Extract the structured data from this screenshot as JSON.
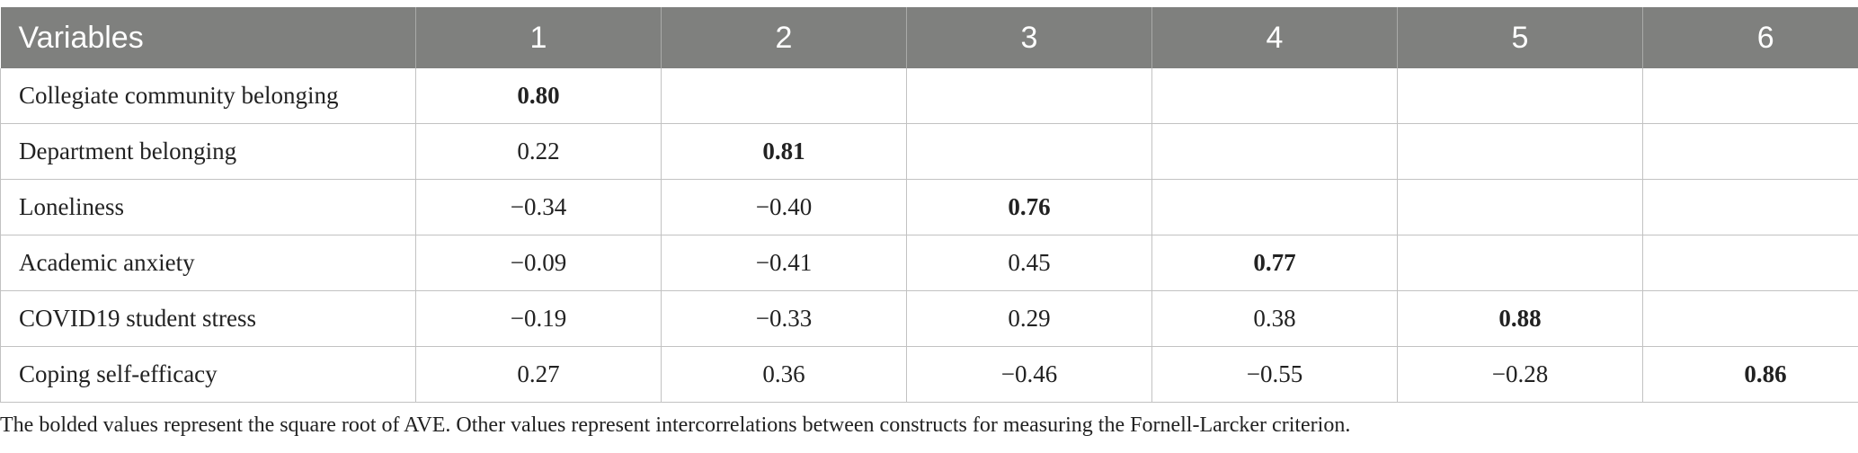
{
  "table": {
    "headers": [
      "Variables",
      "1",
      "2",
      "3",
      "4",
      "5",
      "6"
    ],
    "rows": [
      {
        "label": "Collegiate community belonging",
        "cells": [
          "0.80",
          "",
          "",
          "",
          "",
          ""
        ],
        "bold_index": 0
      },
      {
        "label": "Department belonging",
        "cells": [
          "0.22",
          "0.81",
          "",
          "",
          "",
          ""
        ],
        "bold_index": 1
      },
      {
        "label": "Loneliness",
        "cells": [
          "−0.34",
          "−0.40",
          "0.76",
          "",
          "",
          ""
        ],
        "bold_index": 2
      },
      {
        "label": "Academic anxiety",
        "cells": [
          "−0.09",
          "−0.41",
          "0.45",
          "0.77",
          "",
          ""
        ],
        "bold_index": 3
      },
      {
        "label": "COVID19 student stress",
        "cells": [
          "−0.19",
          "−0.33",
          "0.29",
          "0.38",
          "0.88",
          ""
        ],
        "bold_index": 4
      },
      {
        "label": "Coping self-efficacy",
        "cells": [
          "0.27",
          "0.36",
          "−0.46",
          "−0.55",
          "−0.28",
          "0.86"
        ],
        "bold_index": 5
      }
    ]
  },
  "footnote": "The bolded values represent the square root of AVE. Other values represent intercorrelations between constructs for measuring the Fornell-Larcker criterion.",
  "colors": {
    "header_bg": "#7f807e",
    "header_text": "#ffffff",
    "grid": "#c2c2c2"
  }
}
